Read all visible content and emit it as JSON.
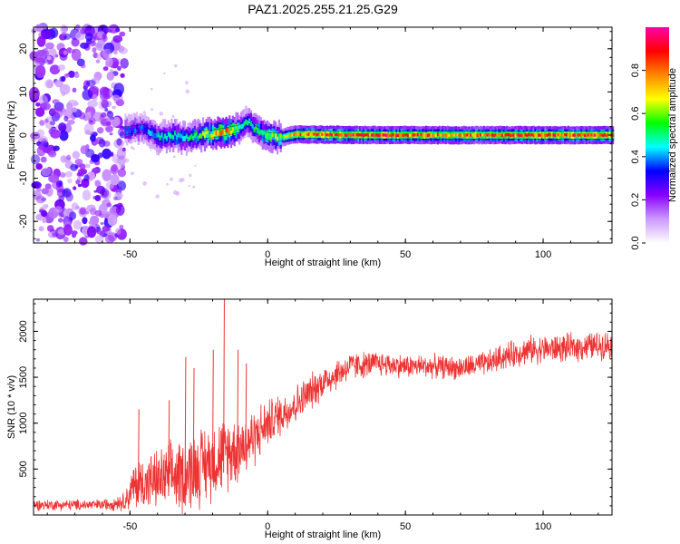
{
  "title": "PAZ1.2025.255.21.25.G29",
  "chart_data": [
    {
      "type": "heatmap",
      "xlabel": "Height of straight line (km)",
      "ylabel": "Frequency (Hz)",
      "xlim": [
        -85,
        125
      ],
      "ylim": [
        -25,
        25
      ],
      "x_ticks": [
        -50,
        0,
        50,
        100
      ],
      "y_ticks": [
        -20,
        -10,
        0,
        10,
        20
      ],
      "colorbar": {
        "label": "Normalized spectral amplitude",
        "range": [
          0,
          1
        ],
        "ticks": [
          0.0,
          0.2,
          0.4,
          0.6,
          0.8
        ],
        "colormap": [
          "#ffffff",
          "#cc99ff",
          "#8800ff",
          "#0000ff",
          "#00ffff",
          "#00ff00",
          "#ffff00",
          "#ff8800",
          "#ff0000",
          "#ff00aa"
        ]
      },
      "noise_region_x": [
        -85,
        -52
      ],
      "signal_trace": [
        {
          "x": -52,
          "f": 1.0,
          "a": 0.35
        },
        {
          "x": -45,
          "f": 1.5,
          "a": 0.35
        },
        {
          "x": -40,
          "f": -0.5,
          "a": 0.45
        },
        {
          "x": -35,
          "f": 0.0,
          "a": 0.5
        },
        {
          "x": -30,
          "f": -0.8,
          "a": 0.45
        },
        {
          "x": -25,
          "f": 0.0,
          "a": 0.55
        },
        {
          "x": -20,
          "f": 0.3,
          "a": 0.7
        },
        {
          "x": -15,
          "f": 0.8,
          "a": 0.8
        },
        {
          "x": -10,
          "f": 1.5,
          "a": 0.5
        },
        {
          "x": -8,
          "f": 3.2,
          "a": 0.45
        },
        {
          "x": -5,
          "f": 1.5,
          "a": 0.5
        },
        {
          "x": 0,
          "f": -0.3,
          "a": 0.6
        },
        {
          "x": 5,
          "f": -0.5,
          "a": 0.6
        },
        {
          "x": 10,
          "f": 0.2,
          "a": 0.8
        },
        {
          "x": 20,
          "f": 0.1,
          "a": 0.85
        },
        {
          "x": 40,
          "f": 0.0,
          "a": 0.85
        },
        {
          "x": 60,
          "f": 0.0,
          "a": 0.8
        },
        {
          "x": 80,
          "f": 0.0,
          "a": 0.8
        },
        {
          "x": 100,
          "f": 0.0,
          "a": 0.85
        },
        {
          "x": 125,
          "f": 0.0,
          "a": 0.85
        }
      ]
    },
    {
      "type": "line",
      "xlabel": "Height of straight line (km)",
      "ylabel": "SNR (10 * v/v)",
      "xlim": [
        -85,
        125
      ],
      "ylim": [
        0,
        2350
      ],
      "x_ticks": [
        -50,
        0,
        50,
        100
      ],
      "y_ticks": [
        500,
        1000,
        1500,
        2000
      ],
      "color": "#ee3333",
      "envelope": [
        {
          "x": -85,
          "mean": 110,
          "spread": 70
        },
        {
          "x": -60,
          "mean": 110,
          "spread": 70
        },
        {
          "x": -52,
          "mean": 150,
          "spread": 120
        },
        {
          "x": -48,
          "mean": 330,
          "spread": 330
        },
        {
          "x": -40,
          "mean": 380,
          "spread": 380
        },
        {
          "x": -30,
          "mean": 450,
          "spread": 500
        },
        {
          "x": -20,
          "mean": 600,
          "spread": 500
        },
        {
          "x": -10,
          "mean": 750,
          "spread": 450
        },
        {
          "x": -5,
          "mean": 850,
          "spread": 380
        },
        {
          "x": 0,
          "mean": 1000,
          "spread": 300
        },
        {
          "x": 10,
          "mean": 1200,
          "spread": 250
        },
        {
          "x": 20,
          "mean": 1450,
          "spread": 220
        },
        {
          "x": 30,
          "mean": 1620,
          "spread": 180
        },
        {
          "x": 40,
          "mean": 1650,
          "spread": 160
        },
        {
          "x": 50,
          "mean": 1620,
          "spread": 150
        },
        {
          "x": 60,
          "mean": 1620,
          "spread": 150
        },
        {
          "x": 70,
          "mean": 1600,
          "spread": 150
        },
        {
          "x": 80,
          "mean": 1650,
          "spread": 160
        },
        {
          "x": 85,
          "mean": 1720,
          "spread": 170
        },
        {
          "x": 95,
          "mean": 1800,
          "spread": 180
        },
        {
          "x": 110,
          "mean": 1820,
          "spread": 180
        },
        {
          "x": 125,
          "mean": 1860,
          "spread": 180
        }
      ],
      "spikes": [
        {
          "x": -47,
          "y": 1150
        },
        {
          "x": -36,
          "y": 1250
        },
        {
          "x": -30,
          "y": 1720
        },
        {
          "x": -27,
          "y": 1600
        },
        {
          "x": -20,
          "y": 1800
        },
        {
          "x": -16,
          "y": 2350
        },
        {
          "x": -11,
          "y": 1800
        },
        {
          "x": -8,
          "y": 1650
        }
      ]
    }
  ]
}
